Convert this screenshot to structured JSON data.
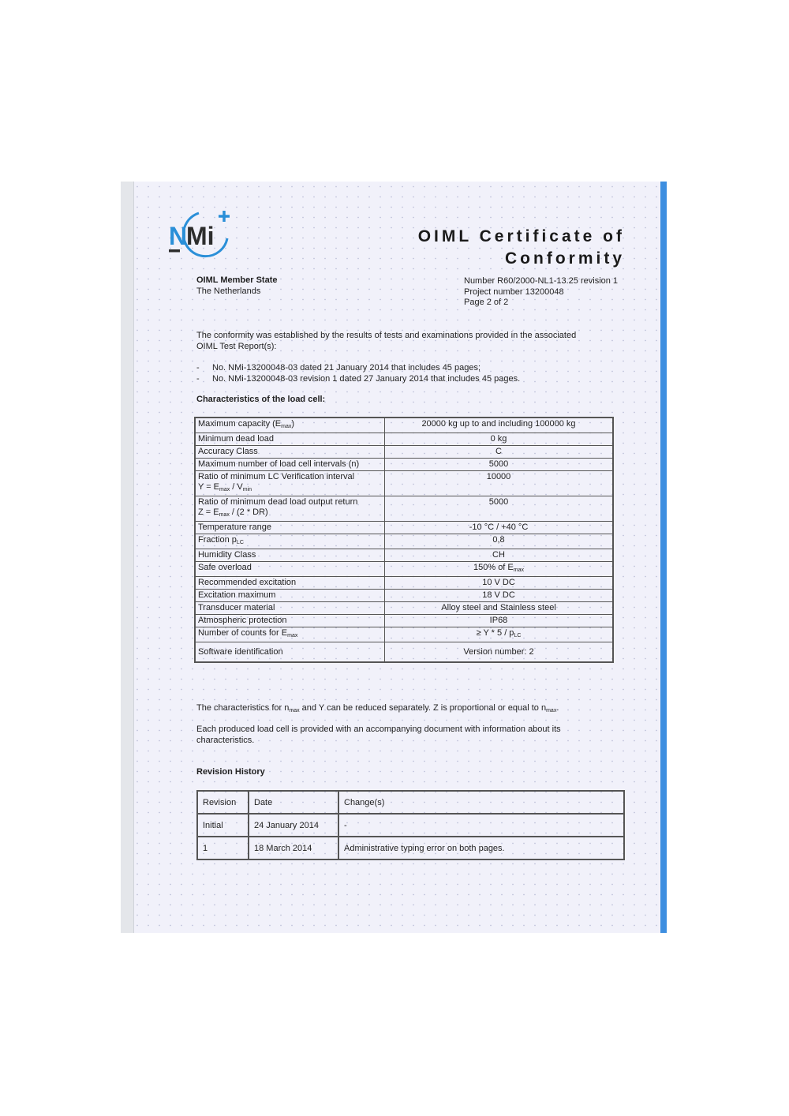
{
  "logo": {
    "text": "NMi",
    "accent": "#2a8fd8"
  },
  "header": {
    "title_line1": "OIML Certificate of",
    "title_line2": "Conformity",
    "member_state_label": "OIML Member State",
    "member_state": "The Netherlands",
    "number": "Number R60/2000-NL1-13.25 revision 1",
    "project": "Project number 13200048",
    "page": "Page 2 of 2"
  },
  "intro": {
    "text1": "The conformity was established by the results of tests and examinations provided in the associated",
    "text2": "OIML Test Report(s):",
    "reports": [
      "No. NMi-13200048-03 dated 21 January 2014 that includes 45 pages;",
      "No. NMi-13200048-03 revision 1 dated 27 January 2014 that includes 45 pages."
    ]
  },
  "characteristics": {
    "heading": "Characteristics of the load cell:",
    "rows": [
      {
        "label": [
          [
            {
              "t": "Maximum capacity (E"
            },
            {
              "t": "max",
              "sub": true
            },
            {
              "t": ")"
            }
          ]
        ],
        "value": [
          {
            "t": "20000 kg up to and including 100000 kg"
          }
        ]
      },
      {
        "label": [
          [
            {
              "t": "Minimum dead load"
            }
          ]
        ],
        "value": [
          {
            "t": "0 kg"
          }
        ]
      },
      {
        "label": [
          [
            {
              "t": "Accuracy Class"
            }
          ]
        ],
        "value": [
          {
            "t": "C"
          }
        ]
      },
      {
        "label": [
          [
            {
              "t": "Maximum number of load cell intervals (n)"
            }
          ]
        ],
        "value": [
          {
            "t": "5000"
          }
        ]
      },
      {
        "label": [
          [
            {
              "t": "Ratio of minimum LC Verification interval"
            }
          ],
          [
            {
              "t": "Y = E"
            },
            {
              "t": "max",
              "sub": true
            },
            {
              "t": " / V"
            },
            {
              "t": "min",
              "sub": true
            }
          ]
        ],
        "value": [
          {
            "t": "10000"
          }
        ]
      },
      {
        "label": [
          [
            {
              "t": "Ratio of minimum dead load output return"
            }
          ],
          [
            {
              "t": "Z = E"
            },
            {
              "t": "max",
              "sub": true
            },
            {
              "t": " / (2 * DR)"
            }
          ]
        ],
        "value": [
          {
            "t": "5000"
          }
        ]
      },
      {
        "label": [
          [
            {
              "t": "Temperature range"
            }
          ]
        ],
        "value": [
          {
            "t": "-10 °C / +40 °C"
          }
        ]
      },
      {
        "label": [
          [
            {
              "t": "Fraction p"
            },
            {
              "t": "LC",
              "sub": true
            }
          ]
        ],
        "value": [
          {
            "t": "0,8"
          }
        ]
      },
      {
        "label": [
          [
            {
              "t": "Humidity Class"
            }
          ]
        ],
        "value": [
          {
            "t": "CH"
          }
        ]
      },
      {
        "label": [
          [
            {
              "t": "Safe overload"
            }
          ]
        ],
        "value": [
          {
            "t": "150% of E"
          },
          {
            "t": "max",
            "sub": true
          }
        ]
      },
      {
        "label": [
          [
            {
              "t": "Recommended excitation"
            }
          ]
        ],
        "value": [
          {
            "t": "10 V DC"
          }
        ]
      },
      {
        "label": [
          [
            {
              "t": "Excitation maximum"
            }
          ]
        ],
        "value": [
          {
            "t": "18 V DC"
          }
        ]
      },
      {
        "label": [
          [
            {
              "t": "Transducer material"
            }
          ]
        ],
        "value": [
          {
            "t": "Alloy steel and Stainless steel"
          }
        ]
      },
      {
        "label": [
          [
            {
              "t": "Atmospheric protection"
            }
          ]
        ],
        "value": [
          {
            "t": "IP68"
          }
        ]
      },
      {
        "label": [
          [
            {
              "t": "Number of counts for E"
            },
            {
              "t": "max",
              "sub": true
            }
          ]
        ],
        "value": [
          {
            "t": "≥ Y * 5 / p"
          },
          {
            "t": "LC",
            "sub": true
          }
        ]
      },
      {
        "label": [
          [
            {
              "t": "Software identification"
            }
          ]
        ],
        "value": [
          {
            "t": "Version number: 2"
          }
        ]
      }
    ]
  },
  "notes": {
    "note1_a": "The characteristics for n",
    "note1_sub1": "max",
    "note1_b": " and Y can be reduced separately. Z is proportional or equal to n",
    "note1_sub2": "max",
    "note1_c": ".",
    "note2_1": "Each produced load cell is provided with an accompanying document with information about its",
    "note2_2": "characteristics."
  },
  "revision_history": {
    "heading": "Revision History",
    "headers": [
      "Revision",
      "Date",
      "Change(s)"
    ],
    "rows": [
      [
        "Initial",
        "24 January 2014",
        "-"
      ],
      [
        "1",
        "18 March 2014",
        "Administrative typing error on both pages."
      ]
    ]
  }
}
